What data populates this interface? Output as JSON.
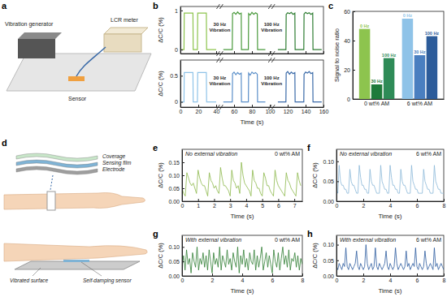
{
  "panel_labels": [
    "a",
    "b",
    "c",
    "d",
    "e",
    "f",
    "g",
    "h"
  ],
  "illustrations": {
    "a": [
      "Vibration generator",
      "LCR meter",
      "Sensor"
    ],
    "d": [
      "Coverage",
      "Sensing film",
      "Electrode",
      "Vibrated surface",
      "Self-damping sensor"
    ]
  },
  "chart_data": [
    {
      "type": "line",
      "y_label": "ΔC/C (%)",
      "xlim": [
        0,
        160
      ],
      "ylim": [
        -0.1,
        1.1
      ],
      "xticks": [
        0,
        20,
        40,
        60,
        80,
        100,
        120,
        140,
        160
      ],
      "yticks": [
        0,
        1
      ],
      "tick_labels": "y",
      "annotations": [
        {
          "text": [
            "30 Hz",
            "Vibration"
          ],
          "x": 44
        },
        {
          "text": [
            "100 Hz",
            "Vibration"
          ],
          "x": 102
        }
      ],
      "series": [
        {
          "color": "#8dc44e",
          "x": [
            0,
            4,
            4.3,
            14,
            14.3,
            19,
            19.3,
            29,
            29.3,
            40
          ],
          "values": [
            0,
            0,
            0.93,
            0.93,
            0,
            0,
            0.93,
            0.93,
            0,
            0
          ]
        },
        {
          "color": "#4a9a3c",
          "x": [
            48,
            58,
            58.3,
            60,
            62,
            64,
            66,
            68,
            68.3,
            76,
            76.3,
            78,
            80,
            82,
            84,
            86,
            86.3,
            95
          ],
          "values": [
            0,
            0,
            0.92,
            0.95,
            0.9,
            0.96,
            0.91,
            0.93,
            0,
            0,
            0.92,
            0.88,
            0.95,
            0.9,
            0.94,
            0.91,
            0,
            0
          ]
        },
        {
          "color": "#2e7d32",
          "x": [
            109,
            118,
            118.3,
            120,
            122,
            124,
            126,
            128,
            128.3,
            138,
            138.3,
            140,
            142,
            144,
            146,
            148,
            148.3,
            158
          ],
          "values": [
            0,
            0,
            0.9,
            0.94,
            0.92,
            0.95,
            0.9,
            0.93,
            0,
            0,
            0.91,
            0.95,
            0.92,
            0.94,
            0.9,
            0.93,
            0,
            0
          ]
        }
      ]
    },
    {
      "type": "line",
      "x_label": "Time (s)",
      "y_label": "ΔC/C (%)",
      "xlim": [
        0,
        160
      ],
      "ylim": [
        -0.1,
        0.8
      ],
      "xticks": [
        0,
        20,
        40,
        60,
        80,
        100,
        120,
        140,
        160
      ],
      "yticks": [
        0,
        0.5
      ],
      "annotations": [
        {
          "text": [
            "30 Hz",
            "Vibration"
          ],
          "x": 44
        },
        {
          "text": [
            "100 Hz",
            "Vibration"
          ],
          "x": 102
        }
      ],
      "series": [
        {
          "color": "#8fc3e8",
          "x": [
            0,
            4,
            4.3,
            14,
            14.3,
            19,
            19.3,
            29,
            29.3,
            40
          ],
          "values": [
            0,
            0,
            0.56,
            0.56,
            0,
            0,
            0.56,
            0.56,
            0,
            0
          ]
        },
        {
          "color": "#5b8fc9",
          "x": [
            48,
            58,
            58.3,
            60,
            62,
            64,
            66,
            68,
            68.3,
            76,
            76.3,
            78,
            80,
            82,
            84,
            86,
            86.3,
            95
          ],
          "values": [
            0,
            0,
            0.54,
            0.57,
            0.52,
            0.56,
            0.53,
            0.55,
            0,
            0,
            0.55,
            0.51,
            0.57,
            0.54,
            0.56,
            0.53,
            0,
            0
          ]
        },
        {
          "color": "#3a6aa8",
          "x": [
            109,
            118,
            118.3,
            120,
            122,
            124,
            126,
            128,
            128.3,
            138,
            138.3,
            140,
            142,
            144,
            146,
            148,
            148.3,
            158
          ],
          "values": [
            0,
            0,
            0.55,
            0.58,
            0.53,
            0.57,
            0.54,
            0.56,
            0,
            0,
            0.53,
            0.57,
            0.55,
            0.58,
            0.54,
            0.56,
            0,
            0
          ]
        }
      ]
    },
    {
      "type": "bar",
      "y_label": "Signal to noise ratio",
      "categories": [
        "0 wt% AM",
        "6 wt% AM"
      ],
      "ylim": [
        0,
        60
      ],
      "yticks": [
        0,
        20,
        40,
        60
      ],
      "series": [
        {
          "name": "0 Hz",
          "colors": [
            "#8dc44e",
            "#8fc3e8"
          ],
          "values": [
            48,
            55
          ]
        },
        {
          "name": "30 Hz",
          "colors": [
            "#1f7a3a",
            "#4a7fc0"
          ],
          "values": [
            10,
            30
          ]
        },
        {
          "name": "100 Hz",
          "colors": [
            "#2e8b57",
            "#2d5c9a"
          ],
          "values": [
            28,
            43
          ]
        }
      ]
    },
    {
      "type": "line",
      "x_label": "Time (s)",
      "y_label": "ΔC/C (%)",
      "annotations": [
        "No external vibration",
        "0 wt% AM"
      ],
      "xlim": [
        0,
        7.5
      ],
      "ylim": [
        0,
        0.2
      ],
      "xticks": [
        0,
        1,
        2,
        3,
        4,
        5,
        6,
        7
      ],
      "yticks": [
        {
          "value": 0,
          "label": "0.00"
        },
        0.05,
        {
          "value": 0.1,
          "label": "0.10"
        },
        0.15
      ],
      "x": [
        0,
        0.1,
        0.2,
        0.3,
        0.4,
        0.5,
        0.6,
        0.7,
        0.8,
        0.9,
        1,
        1.1,
        1.2,
        1.3,
        1.4,
        1.5,
        1.6,
        1.7,
        1.8,
        1.9,
        2,
        2.1,
        2.2,
        2.3,
        2.4,
        2.5,
        2.6,
        2.7,
        2.8,
        2.9,
        3,
        3.1,
        3.2,
        3.3,
        3.4,
        3.5,
        3.6,
        3.7,
        3.8,
        3.9,
        4,
        4.1,
        4.2,
        4.3,
        4.4,
        4.5,
        4.6,
        4.7,
        4.8,
        4.9,
        5,
        5.1,
        5.2,
        5.3,
        5.4,
        5.5,
        5.6,
        5.7,
        5.8,
        5.9,
        6,
        6.1,
        6.2,
        6.3,
        6.4,
        6.5,
        6.6,
        6.7,
        6.8,
        6.9,
        7,
        7.1,
        7.2,
        7.3,
        7.4
      ],
      "series": [
        {
          "color": "#8cb84a",
          "values": [
            0.05,
            0.03,
            0.02,
            0.11,
            0.09,
            0.07,
            0.06,
            0.07,
            0.05,
            0.03,
            0.12,
            0.09,
            0.07,
            0.06,
            0.06,
            0.04,
            0.02,
            0.11,
            0.08,
            0.07,
            0.05,
            0.06,
            0.04,
            0.03,
            0.13,
            0.09,
            0.06,
            0.06,
            0.05,
            0.04,
            0.02,
            0.12,
            0.08,
            0.07,
            0.05,
            0.06,
            0.03,
            0.15,
            0.1,
            0.07,
            0.06,
            0.05,
            0.04,
            0.02,
            0.12,
            0.08,
            0.07,
            0.05,
            0.05,
            0.03,
            0.02,
            0.11,
            0.09,
            0.06,
            0.06,
            0.04,
            0.03,
            0.02,
            0.12,
            0.08,
            0.06,
            0.05,
            0.04,
            0.03,
            0.02,
            0.11,
            0.08,
            0.07,
            0.05,
            0.04,
            0.03,
            0.02,
            0.11,
            0.08,
            0.06
          ]
        }
      ]
    },
    {
      "type": "line",
      "x_label": "Time (s)",
      "y_label": "ΔC/C (%)",
      "annotations": [
        "No external vibration",
        "6 wt% AM"
      ],
      "xlim": [
        0,
        8
      ],
      "ylim": [
        0,
        0.13
      ],
      "xticks": [
        0,
        2,
        4,
        6,
        8
      ],
      "yticks": [
        {
          "value": 0,
          "label": "0.00"
        },
        0.05,
        {
          "value": 0.1,
          "label": "0.10"
        }
      ],
      "x": [
        0,
        0.1,
        0.2,
        0.3,
        0.4,
        0.5,
        0.6,
        0.7,
        0.8,
        0.9,
        1,
        1.1,
        1.2,
        1.3,
        1.4,
        1.5,
        1.6,
        1.7,
        1.8,
        1.9,
        2,
        2.1,
        2.2,
        2.3,
        2.4,
        2.5,
        2.6,
        2.7,
        2.8,
        2.9,
        3,
        3.1,
        3.2,
        3.3,
        3.4,
        3.5,
        3.6,
        3.7,
        3.8,
        3.9,
        4,
        4.1,
        4.2,
        4.3,
        4.4,
        4.5,
        4.6,
        4.7,
        4.8,
        4.9,
        5,
        5.1,
        5.2,
        5.3,
        5.4,
        5.5,
        5.6,
        5.7,
        5.8,
        5.9,
        6,
        6.1,
        6.2,
        6.3,
        6.4,
        6.5,
        6.6,
        6.7,
        6.8,
        6.9,
        7,
        7.1,
        7.2,
        7.3,
        7.4,
        7.5,
        7.6,
        7.7,
        7.8,
        7.9,
        8
      ],
      "series": [
        {
          "color": "#8ab8d8",
          "values": [
            0.03,
            0.02,
            0.09,
            0.05,
            0.04,
            0.04,
            0.03,
            0.03,
            0.02,
            0.02,
            0.08,
            0.05,
            0.04,
            0.04,
            0.03,
            0.02,
            0.02,
            0.09,
            0.06,
            0.04,
            0.04,
            0.03,
            0.03,
            0.02,
            0.02,
            0.08,
            0.05,
            0.04,
            0.04,
            0.03,
            0.02,
            0.02,
            0.02,
            0.09,
            0.05,
            0.04,
            0.03,
            0.03,
            0.02,
            0.02,
            0.09,
            0.06,
            0.04,
            0.04,
            0.03,
            0.03,
            0.02,
            0.02,
            0.08,
            0.05,
            0.04,
            0.04,
            0.03,
            0.02,
            0.02,
            0.02,
            0.09,
            0.05,
            0.04,
            0.03,
            0.03,
            0.02,
            0.02,
            0.02,
            0.02,
            0.08,
            0.05,
            0.04,
            0.03,
            0.03,
            0.02,
            0.02,
            0.02,
            0.09,
            0.05,
            0.04,
            0.03,
            0.03,
            0.02,
            0.02,
            0.02
          ]
        }
      ]
    },
    {
      "type": "line",
      "x_label": "Time (s)",
      "y_label": "ΔC/C (%)",
      "annotations": [
        "With external vibration",
        "0 wt% AM"
      ],
      "xlim": [
        0,
        8
      ],
      "ylim": [
        0,
        0.14
      ],
      "xticks": [
        0,
        2,
        4,
        6,
        8
      ],
      "yticks": [
        {
          "value": 0,
          "label": "0.00"
        },
        0.05,
        {
          "value": 0.1,
          "label": "0.10"
        }
      ],
      "x": [
        0,
        0.1,
        0.2,
        0.3,
        0.4,
        0.5,
        0.6,
        0.7,
        0.8,
        0.9,
        1,
        1.1,
        1.2,
        1.3,
        1.4,
        1.5,
        1.6,
        1.7,
        1.8,
        1.9,
        2,
        2.1,
        2.2,
        2.3,
        2.4,
        2.5,
        2.6,
        2.7,
        2.8,
        2.9,
        3,
        3.1,
        3.2,
        3.3,
        3.4,
        3.5,
        3.6,
        3.7,
        3.8,
        3.9,
        4,
        4.1,
        4.2,
        4.3,
        4.4,
        4.5,
        4.6,
        4.7,
        4.8,
        4.9,
        5,
        5.1,
        5.2,
        5.3,
        5.4,
        5.5,
        5.6,
        5.7,
        5.8,
        5.9,
        6,
        6.1,
        6.2,
        6.3,
        6.4,
        6.5,
        6.6,
        6.7,
        6.8,
        6.9,
        7,
        7.1,
        7.2,
        7.3,
        7.4,
        7.5,
        7.6,
        7.7,
        7.8,
        7.9,
        8
      ],
      "series": [
        {
          "color": "#2e7d32",
          "values": [
            0.03,
            0.07,
            0.02,
            0.09,
            0.04,
            0.06,
            0.01,
            0.08,
            0.05,
            0.03,
            0.1,
            0.02,
            0.06,
            0.04,
            0.08,
            0.03,
            0.07,
            0.02,
            0.09,
            0.05,
            0.01,
            0.08,
            0.04,
            0.06,
            0.03,
            0.1,
            0.02,
            0.07,
            0.05,
            0.03,
            0.09,
            0.04,
            0.06,
            0.02,
            0.08,
            0.05,
            0.03,
            0.1,
            0.01,
            0.07,
            0.04,
            0.09,
            0.03,
            0.06,
            0.02,
            0.08,
            0.05,
            0.04,
            0.09,
            0.02,
            0.07,
            0.03,
            0.06,
            0.1,
            0.02,
            0.05,
            0.08,
            0.03,
            0.07,
            0.04,
            0.01,
            0.09,
            0.05,
            0.03,
            0.08,
            0.02,
            0.06,
            0.1,
            0.04,
            0.07,
            0.03,
            0.09,
            0.02,
            0.06,
            0.05,
            0.08,
            0.03,
            0.07,
            0.02,
            0.06,
            0.04
          ]
        }
      ]
    },
    {
      "type": "line",
      "x_label": "Time (s)",
      "y_label": "ΔC/C (%)",
      "annotations": [
        "With external vibration",
        "6 wt% AM"
      ],
      "xlim": [
        0,
        8
      ],
      "ylim": [
        0,
        0.13
      ],
      "xticks": [
        0,
        2,
        4,
        6,
        8
      ],
      "yticks": [
        {
          "value": 0,
          "label": "0.00"
        },
        0.05,
        {
          "value": 0.1,
          "label": "0.10"
        }
      ],
      "x": [
        0,
        0.1,
        0.2,
        0.3,
        0.4,
        0.5,
        0.6,
        0.7,
        0.8,
        0.9,
        1,
        1.1,
        1.2,
        1.3,
        1.4,
        1.5,
        1.6,
        1.7,
        1.8,
        1.9,
        2,
        2.1,
        2.2,
        2.3,
        2.4,
        2.5,
        2.6,
        2.7,
        2.8,
        2.9,
        3,
        3.1,
        3.2,
        3.3,
        3.4,
        3.5,
        3.6,
        3.7,
        3.8,
        3.9,
        4,
        4.1,
        4.2,
        4.3,
        4.4,
        4.5,
        4.6,
        4.7,
        4.8,
        4.9,
        5,
        5.1,
        5.2,
        5.3,
        5.4,
        5.5,
        5.6,
        5.7,
        5.8,
        5.9,
        6,
        6.1,
        6.2,
        6.3,
        6.4,
        6.5,
        6.6,
        6.7,
        6.8,
        6.9,
        7,
        7.1,
        7.2,
        7.3,
        7.4,
        7.5,
        7.6,
        7.7,
        7.8,
        7.9,
        8
      ],
      "series": [
        {
          "color": "#2b5a9e",
          "values": [
            0.03,
            0.02,
            0.04,
            0.03,
            0.02,
            0.04,
            0.03,
            0.09,
            0.03,
            0.02,
            0.04,
            0.03,
            0.02,
            0.03,
            0.04,
            0.08,
            0.03,
            0.02,
            0.04,
            0.03,
            0.02,
            0.03,
            0.1,
            0.04,
            0.02,
            0.03,
            0.04,
            0.02,
            0.03,
            0.09,
            0.03,
            0.02,
            0.04,
            0.03,
            0.02,
            0.03,
            0.04,
            0.08,
            0.03,
            0.02,
            0.04,
            0.03,
            0.02,
            0.03,
            0.09,
            0.04,
            0.02,
            0.03,
            0.04,
            0.03,
            0.02,
            0.03,
            0.08,
            0.03,
            0.04,
            0.02,
            0.03,
            0.04,
            0.03,
            0.09,
            0.03,
            0.02,
            0.04,
            0.03,
            0.02,
            0.03,
            0.08,
            0.04,
            0.02,
            0.03,
            0.04,
            0.03,
            0.02,
            0.09,
            0.03,
            0.04,
            0.02,
            0.03,
            0.04,
            0.03,
            0.02
          ]
        }
      ]
    }
  ]
}
